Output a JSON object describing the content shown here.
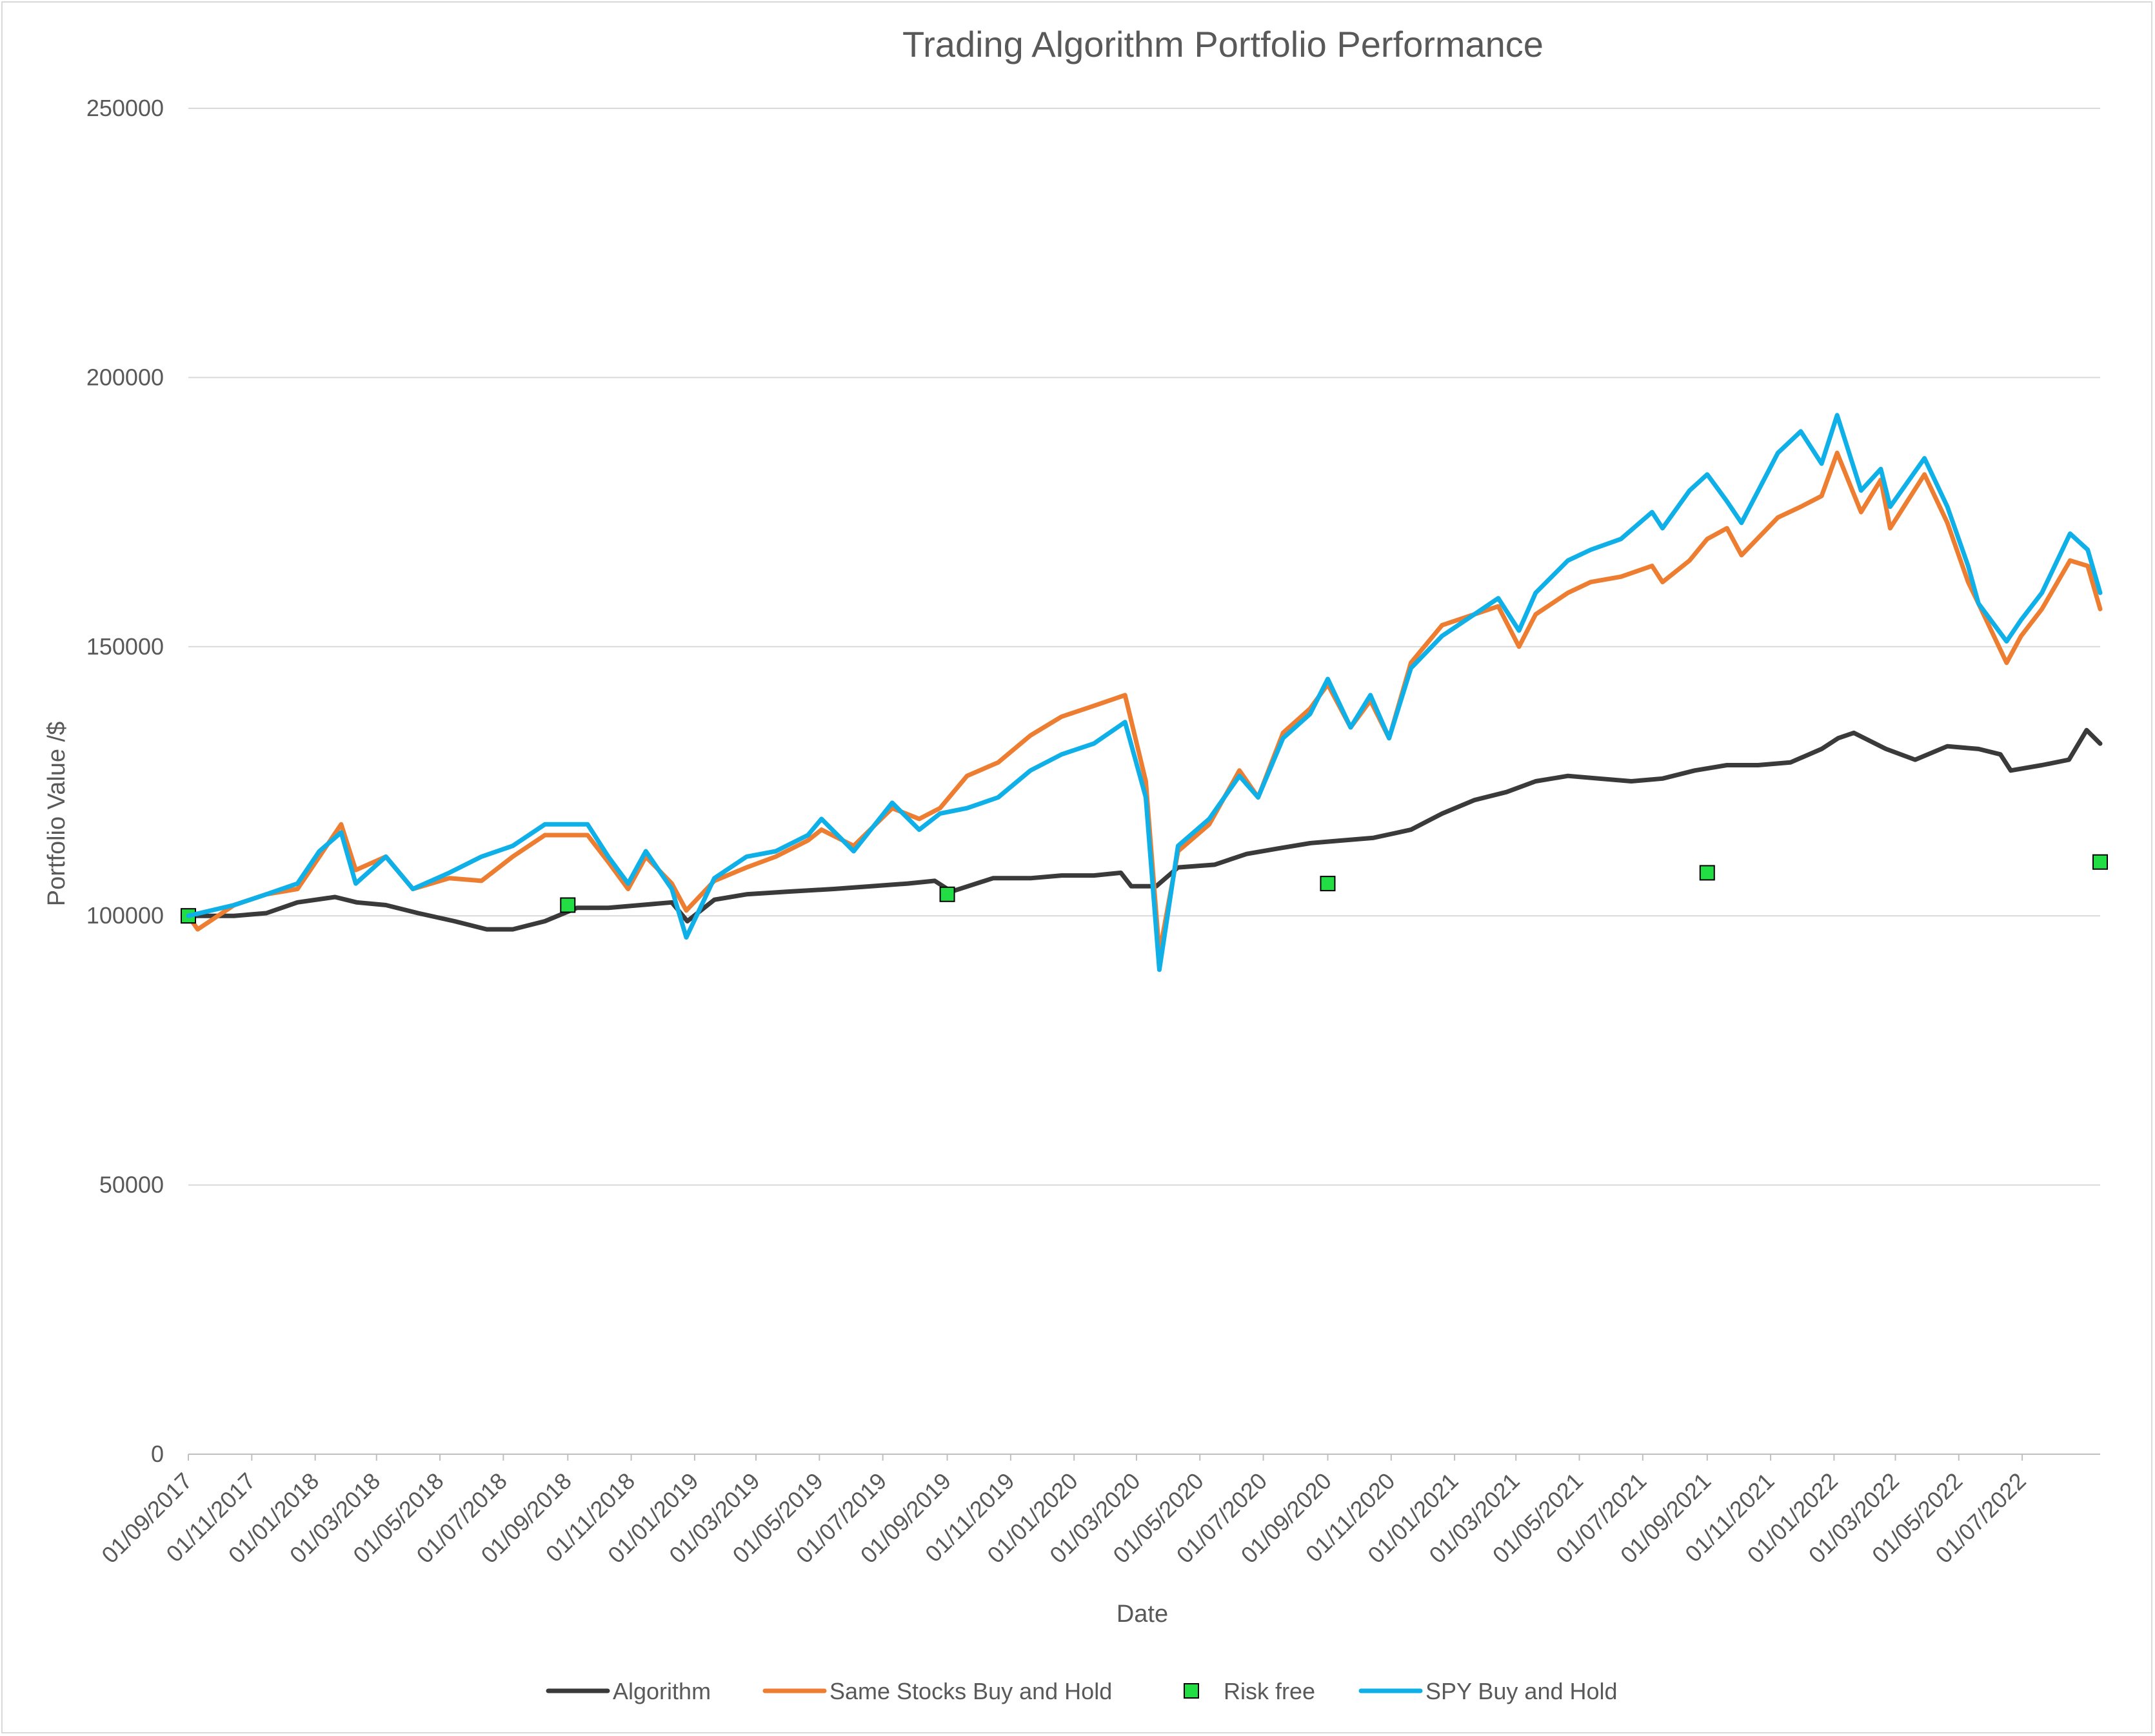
{
  "chart_data": {
    "type": "line",
    "title": "Trading Algorithm Portfolio Performance",
    "xlabel": "Date",
    "ylabel": "Portfolio Value /$",
    "ylim": [
      0,
      250000
    ],
    "yticks": [
      0,
      50000,
      100000,
      150000,
      200000,
      250000
    ],
    "xlim": [
      "2017-09-01",
      "2022-09-14"
    ],
    "xticks": [
      "01/09/2017",
      "01/11/2017",
      "01/01/2018",
      "01/03/2018",
      "01/05/2018",
      "01/07/2018",
      "01/09/2018",
      "01/11/2018",
      "01/01/2019",
      "01/03/2019",
      "01/05/2019",
      "01/07/2019",
      "01/09/2019",
      "01/11/2019",
      "01/01/2020",
      "01/03/2020",
      "01/05/2020",
      "01/07/2020",
      "01/09/2020",
      "01/11/2020",
      "01/01/2021",
      "01/03/2021",
      "01/05/2021",
      "01/07/2021",
      "01/09/2021",
      "01/11/2021",
      "01/01/2022",
      "01/03/2022",
      "01/05/2022",
      "01/07/2022"
    ],
    "grid": true,
    "legend_position": "bottom",
    "series": [
      {
        "name": "Algorithm",
        "style": "line",
        "color": "#3a3a3a",
        "x": [
          "2017-09-01",
          "2017-10-15",
          "2017-11-15",
          "2017-12-15",
          "2018-01-20",
          "2018-02-10",
          "2018-03-10",
          "2018-04-10",
          "2018-05-15",
          "2018-06-15",
          "2018-07-10",
          "2018-08-10",
          "2018-09-10",
          "2018-10-10",
          "2018-11-10",
          "2018-12-10",
          "2018-12-25",
          "2019-01-20",
          "2019-02-20",
          "2019-04-01",
          "2019-05-15",
          "2019-06-20",
          "2019-07-25",
          "2019-08-20",
          "2019-09-05",
          "2019-10-15",
          "2019-11-20",
          "2019-12-20",
          "2020-01-20",
          "2020-02-15",
          "2020-02-25",
          "2020-03-20",
          "2020-04-10",
          "2020-05-15",
          "2020-06-15",
          "2020-07-15",
          "2020-08-15",
          "2020-09-15",
          "2020-10-15",
          "2020-11-20",
          "2020-12-20",
          "2021-01-20",
          "2021-02-20",
          "2021-03-20",
          "2021-04-20",
          "2021-05-20",
          "2021-06-20",
          "2021-07-20",
          "2021-08-20",
          "2021-09-20",
          "2021-10-20",
          "2021-11-20",
          "2021-12-20",
          "2022-01-05",
          "2022-01-20",
          "2022-02-20",
          "2022-03-20",
          "2022-04-20",
          "2022-05-20",
          "2022-06-10",
          "2022-06-20",
          "2022-07-20",
          "2022-08-15",
          "2022-09-01",
          "2022-09-14"
        ],
        "y": [
          100000,
          100000,
          100500,
          102500,
          103500,
          102500,
          102000,
          100500,
          99000,
          97500,
          97500,
          99000,
          101500,
          101500,
          102000,
          102500,
          99000,
          103000,
          104000,
          104500,
          105000,
          105500,
          106000,
          106500,
          104500,
          107000,
          107000,
          107500,
          107500,
          108000,
          105500,
          105500,
          109000,
          109500,
          111500,
          112500,
          113500,
          114000,
          114500,
          116000,
          119000,
          121500,
          123000,
          125000,
          126000,
          125500,
          125000,
          125500,
          127000,
          128000,
          128000,
          128500,
          131000,
          133000,
          134000,
          131000,
          129000,
          131500,
          131000,
          130000,
          127000,
          128000,
          129000,
          134500,
          132000
        ]
      },
      {
        "name": "Same Stocks Buy and Hold",
        "style": "line",
        "color": "#ed7d31",
        "x": [
          "2017-09-01",
          "2017-09-10",
          "2017-10-15",
          "2017-11-15",
          "2017-12-15",
          "2018-01-05",
          "2018-01-26",
          "2018-02-09",
          "2018-03-10",
          "2018-04-05",
          "2018-05-10",
          "2018-06-10",
          "2018-07-10",
          "2018-08-10",
          "2018-09-20",
          "2018-10-10",
          "2018-10-29",
          "2018-11-15",
          "2018-12-10",
          "2018-12-24",
          "2019-01-20",
          "2019-02-20",
          "2019-03-20",
          "2019-04-20",
          "2019-05-03",
          "2019-06-03",
          "2019-07-10",
          "2019-08-05",
          "2019-08-25",
          "2019-09-20",
          "2019-10-20",
          "2019-11-20",
          "2019-12-20",
          "2020-01-20",
          "2020-02-19",
          "2020-03-10",
          "2020-03-23",
          "2020-04-10",
          "2020-05-10",
          "2020-06-08",
          "2020-06-26",
          "2020-07-20",
          "2020-08-15",
          "2020-09-01",
          "2020-09-23",
          "2020-10-12",
          "2020-10-30",
          "2020-11-20",
          "2020-12-20",
          "2021-01-20",
          "2021-02-12",
          "2021-03-04",
          "2021-03-20",
          "2021-04-20",
          "2021-05-12",
          "2021-06-10",
          "2021-07-10",
          "2021-07-20",
          "2021-08-15",
          "2021-09-01",
          "2021-09-20",
          "2021-10-04",
          "2021-11-08",
          "2021-11-30",
          "2021-12-20",
          "2022-01-04",
          "2022-01-27",
          "2022-02-15",
          "2022-02-24",
          "2022-03-29",
          "2022-04-20",
          "2022-05-10",
          "2022-05-20",
          "2022-06-16",
          "2022-06-30",
          "2022-07-20",
          "2022-08-16",
          "2022-09-02",
          "2022-09-14"
        ],
        "y": [
          100000,
          97500,
          102000,
          104000,
          105000,
          111000,
          117000,
          108500,
          111000,
          105000,
          107000,
          106500,
          111000,
          115000,
          115000,
          110000,
          105000,
          111000,
          106000,
          101000,
          106500,
          109000,
          111000,
          114000,
          116000,
          113000,
          120000,
          118000,
          120000,
          126000,
          128500,
          133500,
          137000,
          139000,
          141000,
          125000,
          93000,
          112000,
          117000,
          127000,
          122000,
          134000,
          138500,
          143000,
          135000,
          140000,
          133000,
          147000,
          154000,
          156000,
          157500,
          150000,
          156000,
          160000,
          162000,
          163000,
          165000,
          162000,
          166000,
          170000,
          172000,
          167000,
          174000,
          176000,
          178000,
          186000,
          175000,
          181000,
          172000,
          182000,
          173000,
          162000,
          158000,
          147000,
          152000,
          157000,
          166000,
          165000,
          157000
        ]
      },
      {
        "name": "Risk free",
        "style": "marker",
        "color": "#22dd44",
        "x": [
          "2017-09-01",
          "2018-09-01",
          "2019-09-01",
          "2020-09-01",
          "2021-09-01",
          "2022-09-14"
        ],
        "y": [
          100000,
          102000,
          104000,
          106000,
          108000,
          110000
        ]
      },
      {
        "name": "SPY Buy and Hold",
        "style": "line",
        "color": "#0fb0e8",
        "x": [
          "2017-09-01",
          "2017-10-15",
          "2017-11-15",
          "2017-12-15",
          "2018-01-05",
          "2018-01-26",
          "2018-02-09",
          "2018-03-10",
          "2018-04-05",
          "2018-05-10",
          "2018-06-10",
          "2018-07-10",
          "2018-08-10",
          "2018-09-20",
          "2018-10-10",
          "2018-10-29",
          "2018-11-15",
          "2018-12-10",
          "2018-12-24",
          "2019-01-20",
          "2019-02-20",
          "2019-03-20",
          "2019-04-20",
          "2019-05-03",
          "2019-06-03",
          "2019-07-10",
          "2019-08-05",
          "2019-08-25",
          "2019-09-20",
          "2019-10-20",
          "2019-11-20",
          "2019-12-20",
          "2020-01-20",
          "2020-02-19",
          "2020-03-10",
          "2020-03-23",
          "2020-04-10",
          "2020-05-10",
          "2020-06-08",
          "2020-06-26",
          "2020-07-20",
          "2020-08-15",
          "2020-09-01",
          "2020-09-23",
          "2020-10-12",
          "2020-10-30",
          "2020-11-20",
          "2020-12-20",
          "2021-01-20",
          "2021-02-12",
          "2021-03-04",
          "2021-03-20",
          "2021-04-20",
          "2021-05-12",
          "2021-06-10",
          "2021-07-10",
          "2021-07-20",
          "2021-08-15",
          "2021-09-01",
          "2021-09-20",
          "2021-10-04",
          "2021-11-08",
          "2021-11-30",
          "2021-12-20",
          "2022-01-04",
          "2022-01-27",
          "2022-02-15",
          "2022-02-24",
          "2022-03-29",
          "2022-04-20",
          "2022-05-10",
          "2022-05-20",
          "2022-06-16",
          "2022-06-30",
          "2022-07-20",
          "2022-08-16",
          "2022-09-02",
          "2022-09-14"
        ],
        "y": [
          100000,
          102000,
          104000,
          106000,
          112000,
          115500,
          106000,
          111000,
          105000,
          108000,
          111000,
          113000,
          117000,
          117000,
          111000,
          106000,
          112000,
          105000,
          96000,
          107000,
          111000,
          112000,
          115000,
          118000,
          112000,
          121000,
          116000,
          119000,
          120000,
          122000,
          127000,
          130000,
          132000,
          136000,
          122000,
          90000,
          113000,
          118000,
          126000,
          122000,
          133000,
          137500,
          144000,
          135000,
          141000,
          133000,
          146000,
          152000,
          156000,
          159000,
          153000,
          160000,
          166000,
          168000,
          170000,
          175000,
          172000,
          179000,
          182000,
          177000,
          173000,
          186000,
          190000,
          184000,
          193000,
          179000,
          183000,
          176000,
          185000,
          176000,
          165000,
          158000,
          151000,
          155000,
          160000,
          171000,
          168000,
          160000
        ]
      }
    ]
  }
}
